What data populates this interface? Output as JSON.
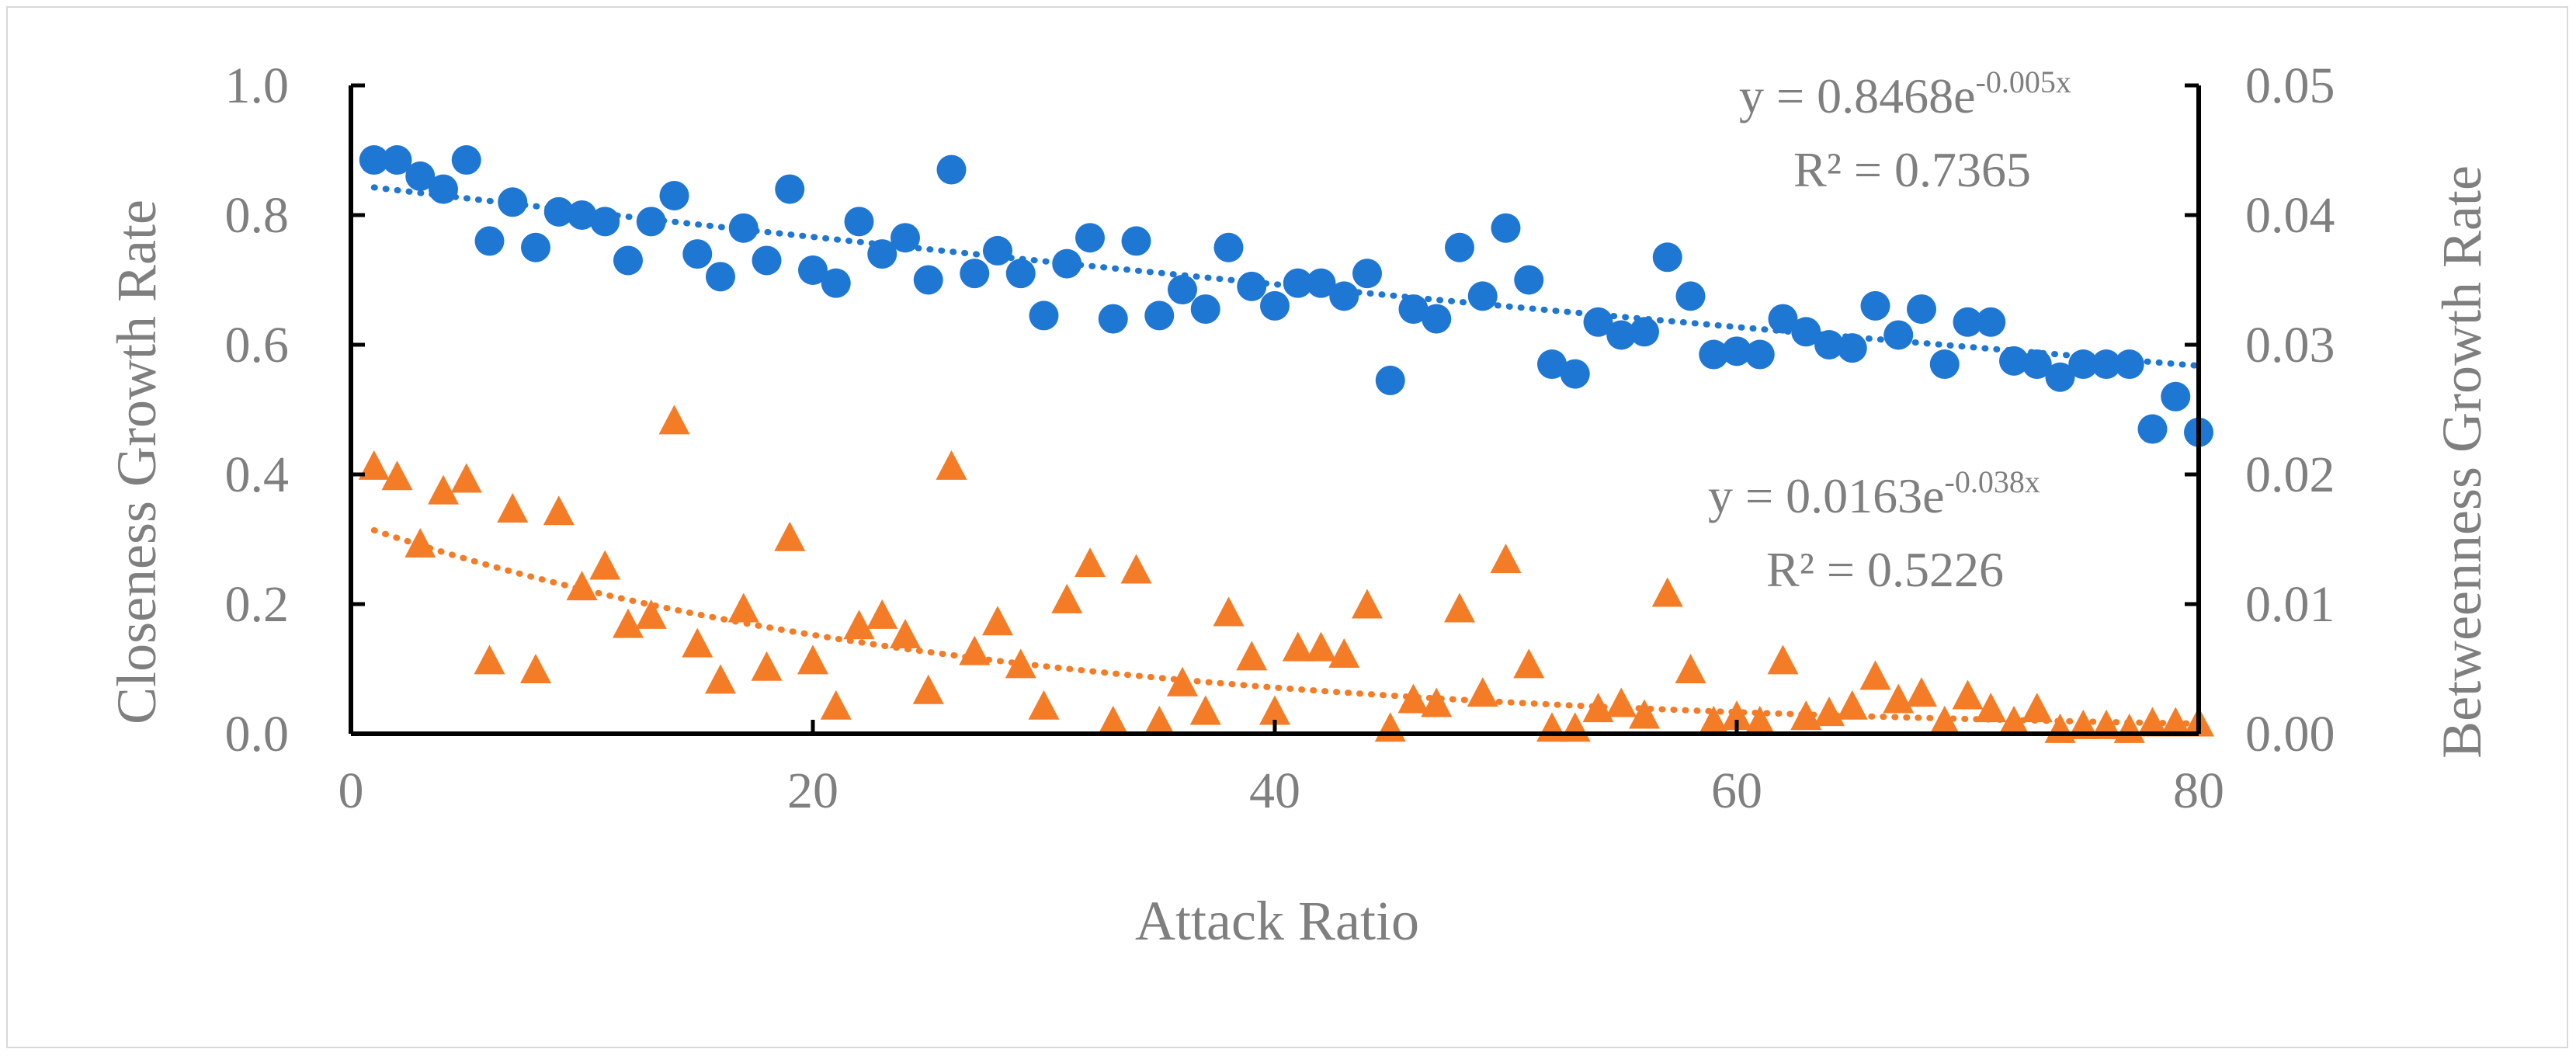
{
  "chart_data": {
    "type": "scatter",
    "title": "",
    "xlabel": "Attack Ratio",
    "ylabel_left": "Closeness Growth Rate",
    "ylabel_right": "Betweenness Growth Rate",
    "xlim": [
      0,
      80
    ],
    "ylim_left": [
      0,
      1.0
    ],
    "ylim_right": [
      0,
      0.05
    ],
    "x_ticks": [
      "0",
      "20",
      "40",
      "60",
      "80"
    ],
    "y_left_ticks": [
      "0.0",
      "0.2",
      "0.4",
      "0.6",
      "0.8",
      "1.0"
    ],
    "y_right_ticks": [
      "0.00",
      "0.01",
      "0.02",
      "0.03",
      "0.04",
      "0.05"
    ],
    "grid": false,
    "colors": {
      "closeness": "#1f77d4",
      "betweenness": "#f57c26",
      "axis": "#000000",
      "text": "#7f7f7f"
    },
    "series": [
      {
        "name": "Closeness Growth Rate",
        "axis": "left",
        "marker": "circle",
        "x": [
          1,
          2,
          3,
          4,
          5,
          6,
          7,
          8,
          9,
          10,
          11,
          12,
          13,
          14,
          15,
          16,
          17,
          18,
          19,
          20,
          21,
          22,
          23,
          24,
          25,
          26,
          27,
          28,
          29,
          30,
          31,
          32,
          33,
          34,
          35,
          36,
          37,
          38,
          39,
          40,
          41,
          42,
          43,
          44,
          45,
          46,
          47,
          48,
          49,
          50,
          51,
          52,
          53,
          54,
          55,
          56,
          57,
          58,
          59,
          60,
          61,
          62,
          63,
          64,
          65,
          66,
          67,
          68,
          69,
          70,
          71,
          72,
          73,
          74,
          75,
          76,
          77,
          78,
          79,
          80
        ],
        "values": [
          0.885,
          0.885,
          0.86,
          0.84,
          0.885,
          0.76,
          0.82,
          0.75,
          0.805,
          0.8,
          0.79,
          0.73,
          0.79,
          0.83,
          0.74,
          0.705,
          0.78,
          0.73,
          0.84,
          0.715,
          0.695,
          0.79,
          0.74,
          0.765,
          0.7,
          0.87,
          0.71,
          0.745,
          0.71,
          0.645,
          0.725,
          0.765,
          0.64,
          0.76,
          0.645,
          0.685,
          0.655,
          0.75,
          0.69,
          0.66,
          0.695,
          0.695,
          0.675,
          0.71,
          0.545,
          0.655,
          0.64,
          0.75,
          0.675,
          0.78,
          0.7,
          0.57,
          0.555,
          0.635,
          0.615,
          0.62,
          0.735,
          0.675,
          0.585,
          0.59,
          0.585,
          0.64,
          0.62,
          0.6,
          0.595,
          0.66,
          0.615,
          0.655,
          0.57,
          0.635,
          0.635,
          0.575,
          0.57,
          0.55,
          0.57,
          0.57,
          0.57,
          0.47,
          0.52,
          0.465
        ],
        "trendline": {
          "type": "exponential",
          "a": 0.8468,
          "b": -0.005
        }
      },
      {
        "name": "Betweenness Growth Rate",
        "axis": "right",
        "marker": "triangle",
        "x": [
          1,
          2,
          3,
          4,
          5,
          6,
          7,
          8,
          9,
          10,
          11,
          12,
          13,
          14,
          15,
          16,
          17,
          18,
          19,
          20,
          21,
          22,
          23,
          24,
          25,
          26,
          27,
          28,
          29,
          30,
          31,
          32,
          33,
          34,
          35,
          36,
          37,
          38,
          39,
          40,
          41,
          42,
          43,
          44,
          45,
          46,
          47,
          48,
          49,
          50,
          51,
          52,
          53,
          54,
          55,
          56,
          57,
          58,
          59,
          60,
          61,
          62,
          63,
          64,
          65,
          66,
          67,
          68,
          69,
          70,
          71,
          72,
          73,
          74,
          75,
          76,
          77,
          78,
          79,
          80
        ],
        "values": [
          0.0205,
          0.0197,
          0.0145,
          0.0186,
          0.0195,
          0.0055,
          0.0172,
          0.0048,
          0.017,
          0.0112,
          0.0128,
          0.0083,
          0.009,
          0.024,
          0.0068,
          0.004,
          0.0095,
          0.005,
          0.015,
          0.0055,
          0.002,
          0.0082,
          0.009,
          0.0075,
          0.0032,
          0.0205,
          0.0062,
          0.0085,
          0.0052,
          0.002,
          0.0102,
          0.013,
          0.0008,
          0.0125,
          0.0008,
          0.0038,
          0.0016,
          0.0092,
          0.0058,
          0.0016,
          0.0065,
          0.0065,
          0.006,
          0.0098,
          0.0003,
          0.0025,
          0.0022,
          0.0095,
          0.003,
          0.0133,
          0.0052,
          0.0003,
          0.0003,
          0.0018,
          0.0022,
          0.0013,
          0.0107,
          0.0048,
          0.0008,
          0.0012,
          0.0008,
          0.0055,
          0.0012,
          0.0015,
          0.002,
          0.0043,
          0.0025,
          0.003,
          0.0008,
          0.0028,
          0.0018,
          0.0008,
          0.0018,
          0.0002,
          0.0005,
          0.0005,
          0.0002,
          0.0007,
          0.0007,
          0.0007
        ],
        "trendline": {
          "type": "exponential",
          "a": 0.0163,
          "b": -0.038
        }
      }
    ],
    "annotations": [
      {
        "series": "Closeness Growth Rate",
        "equation_base": "y = 0.8468e",
        "equation_exp": "-0.005x",
        "r2": "R² = 0.7365"
      },
      {
        "series": "Betweenness Growth Rate",
        "equation_base": "y = 0.0163e",
        "equation_exp": "-0.038x",
        "r2": "R² = 0.5226"
      }
    ]
  }
}
